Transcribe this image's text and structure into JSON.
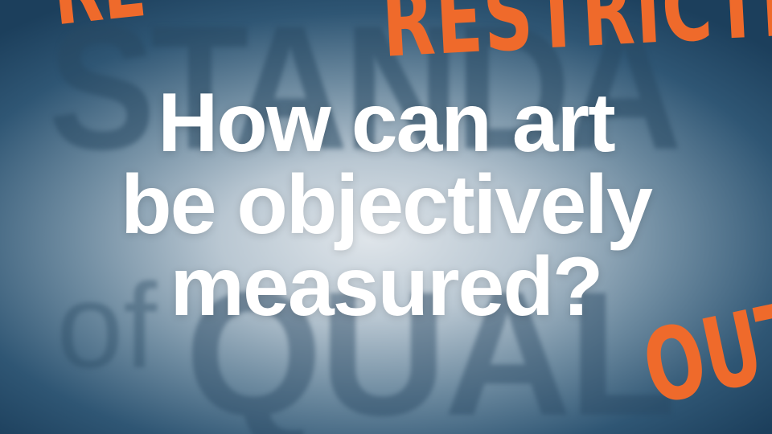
{
  "headline": {
    "lines": [
      "How can art",
      "be objectively",
      "measured?"
    ]
  },
  "background": {
    "word_standard": "STANDA",
    "word_of": "of",
    "word_quality": "QUAL"
  },
  "stamps": {
    "restrict": "RESTRICTI",
    "top_left": "RE",
    "out": "OUT"
  },
  "colors": {
    "stamp": "#ef6a2b",
    "headline": "#ffffff",
    "background_dark": "#1c3f5c",
    "background_light": "#dfe5ea"
  }
}
